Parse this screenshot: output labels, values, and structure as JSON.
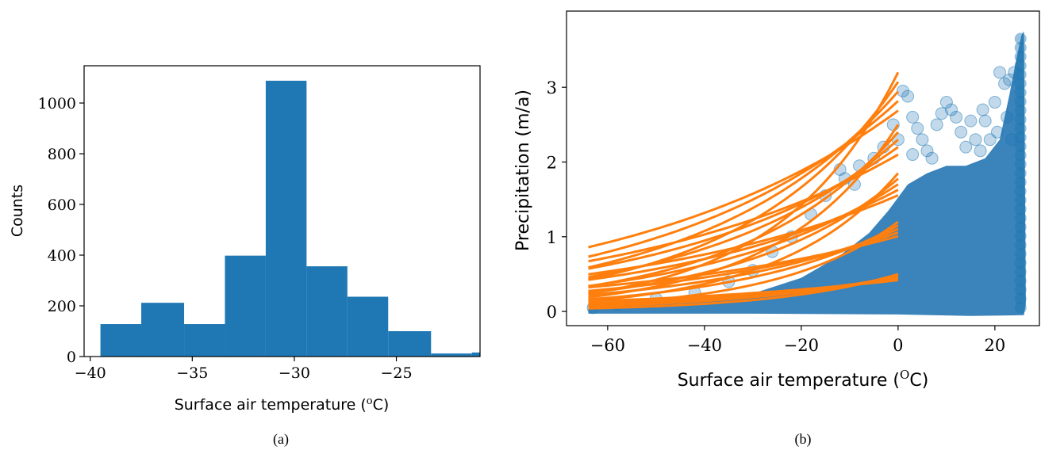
{
  "chart_data": [
    {
      "type": "bar",
      "subtype": "histogram",
      "caption": "(a)",
      "xlabel": "Surface air temperature (",
      "xlabel_unit": "o",
      "xlabel_end": "C)",
      "ylabel": "Counts",
      "xlim": [
        -40.3,
        -20.9
      ],
      "ylim": [
        0,
        1147
      ],
      "xticks": [
        -40,
        -35,
        -30,
        -25
      ],
      "xtick_labels": [
        "−40",
        "−35",
        "−30",
        "−25"
      ],
      "yticks": [
        0,
        200,
        400,
        600,
        800,
        1000
      ],
      "ytick_labels": [
        "0",
        "200",
        "400",
        "600",
        "800",
        "1000"
      ],
      "bins": [
        [
          -39.5,
          -37.5,
          128
        ],
        [
          -37.5,
          -35.4,
          212
        ],
        [
          -35.4,
          -33.4,
          128
        ],
        [
          -33.4,
          -31.4,
          398
        ],
        [
          -31.4,
          -29.4,
          1088
        ],
        [
          -29.4,
          -27.4,
          356
        ],
        [
          -27.4,
          -25.4,
          236
        ],
        [
          -25.4,
          -23.3,
          100
        ],
        [
          -23.3,
          -21.3,
          12
        ],
        [
          -21.3,
          -19.3,
          16
        ]
      ],
      "color": "#1f77b4",
      "grid": false
    },
    {
      "type": "scatter",
      "caption": "(b)",
      "xlabel": "Surface air temperature (",
      "xlabel_unit": "O",
      "xlabel_end": "C)",
      "ylabel": "Precipitation (m/a)",
      "xlim": [
        -68.5,
        29.2
      ],
      "ylim": [
        -0.19,
        4.02
      ],
      "xticks": [
        -60,
        -40,
        -20,
        0,
        20
      ],
      "xtick_labels": [
        "−60",
        "−40",
        "−20",
        "0",
        "20"
      ],
      "yticks": [
        0,
        1,
        2,
        3
      ],
      "ytick_labels": [
        "0",
        "1",
        "2",
        "3"
      ],
      "scatter_color": "#1f77b4",
      "line_color": "#ff7f0e",
      "curves": [
        {
          "x": [
            -64,
            0
          ],
          "y0": 0.24,
          "y1": 3.2
        },
        {
          "x": [
            -64,
            0
          ],
          "y0": 0.19,
          "y1": 2.5
        },
        {
          "x": [
            -64,
            0
          ],
          "y0": 0.14,
          "y1": 1.85
        },
        {
          "x": [
            -64,
            0
          ],
          "y0": 0.09,
          "y1": 1.2
        },
        {
          "x": [
            -64,
            0
          ],
          "y0": 0.04,
          "y1": 0.5
        }
      ],
      "grid": false
    }
  ]
}
